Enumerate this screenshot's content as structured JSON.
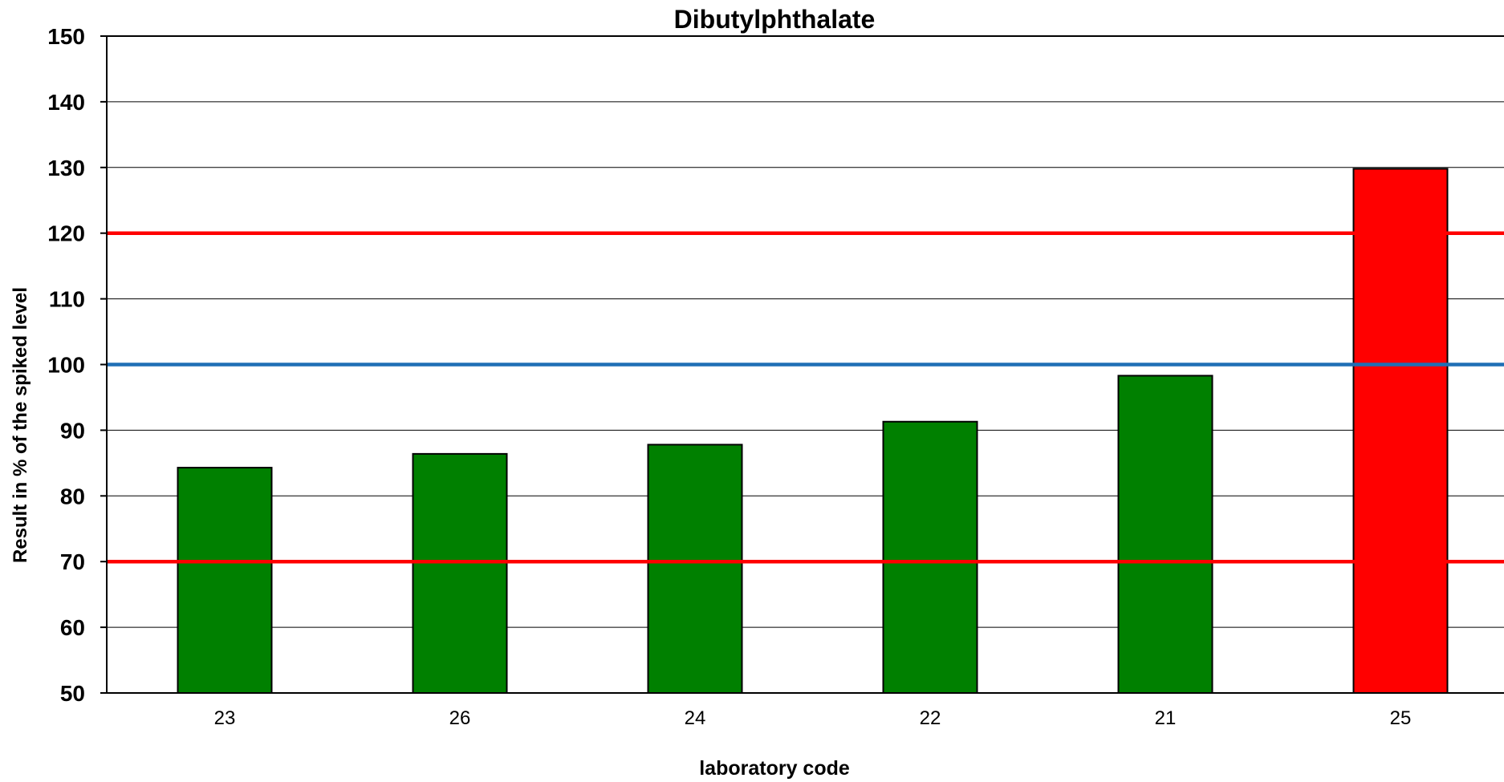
{
  "chart_data": {
    "type": "bar",
    "title": "Dibutylphthalate",
    "xlabel": "laboratory code",
    "ylabel": "Result in % of the spiked level",
    "ylim": [
      50,
      150
    ],
    "yticks": [
      50,
      60,
      70,
      80,
      90,
      100,
      110,
      120,
      130,
      140,
      150
    ],
    "grid": true,
    "legend": "none",
    "categories": [
      "23",
      "26",
      "24",
      "22",
      "21",
      "25"
    ],
    "values": [
      84.3,
      86.4,
      87.8,
      91.3,
      98.3,
      129.8
    ],
    "bar_colors": [
      "#008000",
      "#008000",
      "#008000",
      "#008000",
      "#008000",
      "#ff0000"
    ],
    "reference_lines": [
      {
        "value": 120,
        "color": "#ff0000"
      },
      {
        "value": 100,
        "color": "#1f6fb5"
      },
      {
        "value": 70,
        "color": "#ff0000"
      }
    ]
  }
}
